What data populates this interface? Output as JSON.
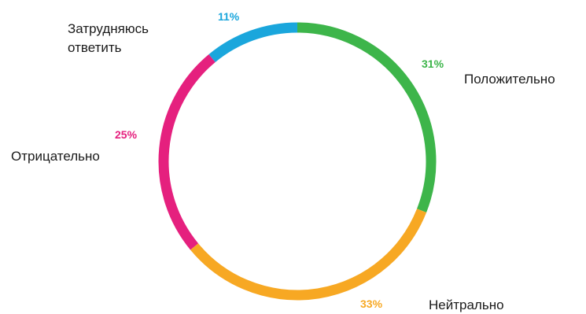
{
  "chart_data": {
    "type": "pie",
    "style": "donut-ring",
    "slices": [
      {
        "label": "Положительно",
        "value": 31,
        "display": "31%",
        "color": "#3db54a"
      },
      {
        "label": "Нейтрально",
        "value": 33,
        "display": "33%",
        "color": "#f7a823"
      },
      {
        "label": "Отрицательно",
        "value": 25,
        "display": "25%",
        "color": "#e5207e"
      },
      {
        "label": "Затрудняюсь ответить",
        "label_lines": [
          "Затрудняюсь",
          "ответить"
        ],
        "value": 11,
        "display": "11%",
        "color": "#1aa6dc"
      }
    ]
  }
}
